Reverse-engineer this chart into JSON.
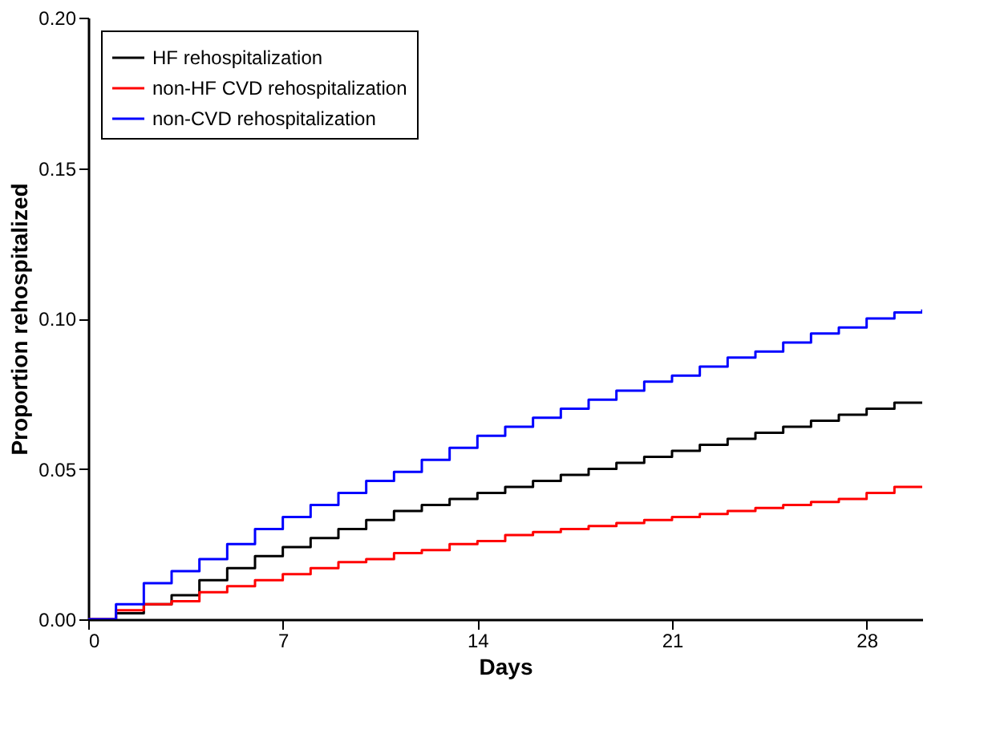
{
  "chart_data": {
    "type": "step",
    "xlabel": "Days",
    "ylabel": "Proportion rehospitalized",
    "x": [
      0,
      1,
      2,
      3,
      4,
      5,
      6,
      7,
      8,
      9,
      10,
      11,
      12,
      13,
      14,
      15,
      16,
      17,
      18,
      19,
      20,
      21,
      22,
      23,
      24,
      25,
      26,
      27,
      28,
      29,
      30
    ],
    "series": [
      {
        "name": "HF rehospitalization",
        "color": "#000000",
        "values": [
          0,
          0.002,
          0.005,
          0.008,
          0.013,
          0.017,
          0.021,
          0.024,
          0.027,
          0.03,
          0.033,
          0.036,
          0.038,
          0.04,
          0.042,
          0.044,
          0.046,
          0.048,
          0.05,
          0.052,
          0.054,
          0.056,
          0.058,
          0.06,
          0.062,
          0.064,
          0.066,
          0.068,
          0.07,
          0.072,
          0.072
        ]
      },
      {
        "name": "non-HF CVD rehospitalization",
        "color": "#ff0000",
        "values": [
          0,
          0.003,
          0.005,
          0.006,
          0.009,
          0.011,
          0.013,
          0.015,
          0.017,
          0.019,
          0.02,
          0.022,
          0.023,
          0.025,
          0.026,
          0.028,
          0.029,
          0.03,
          0.031,
          0.032,
          0.033,
          0.034,
          0.035,
          0.036,
          0.037,
          0.038,
          0.039,
          0.04,
          0.042,
          0.044,
          0.044
        ]
      },
      {
        "name": "non-CVD rehospitalization",
        "color": "#0000ff",
        "values": [
          0,
          0.005,
          0.012,
          0.016,
          0.02,
          0.025,
          0.03,
          0.034,
          0.038,
          0.042,
          0.046,
          0.049,
          0.053,
          0.057,
          0.061,
          0.064,
          0.067,
          0.07,
          0.073,
          0.076,
          0.079,
          0.081,
          0.084,
          0.087,
          0.089,
          0.092,
          0.095,
          0.097,
          0.1,
          0.102,
          0.103
        ]
      }
    ],
    "xlim": [
      0,
      30
    ],
    "xticks": [
      0,
      7,
      14,
      21,
      28
    ],
    "ylim": [
      0,
      0.2
    ],
    "yticks": [
      {
        "value": 0,
        "label": "0.00"
      },
      {
        "value": 0.05,
        "label": "0.05"
      },
      {
        "value": 0.1,
        "label": "0.10"
      },
      {
        "value": 0.15,
        "label": "0.15"
      },
      {
        "value": 0.2,
        "label": "0.20"
      }
    ],
    "grid": false,
    "legend": "top left",
    "line_style": "solid",
    "marker": "none"
  }
}
